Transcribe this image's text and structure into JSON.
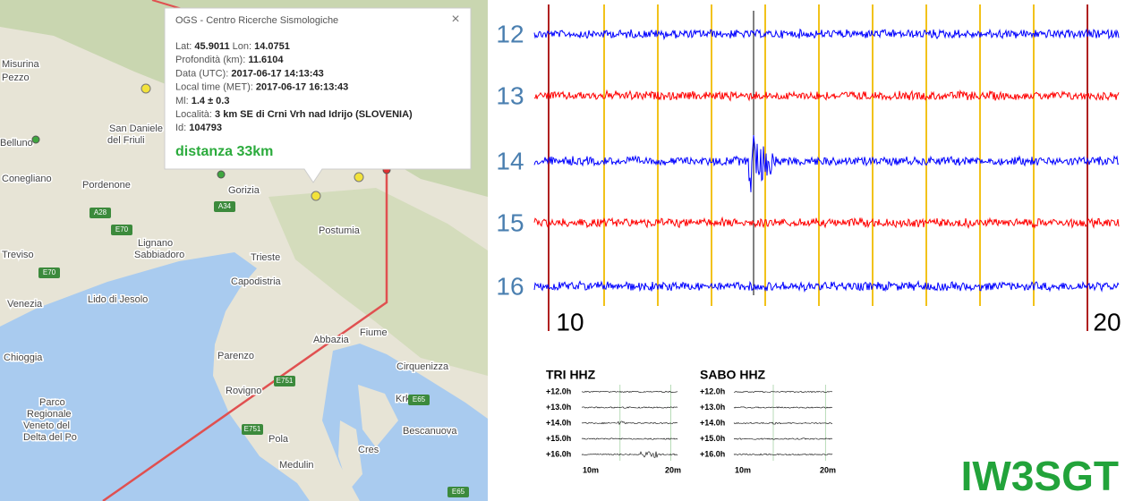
{
  "map": {
    "labels": [
      "Misurina",
      "Pezzo",
      "Belluno",
      "San Daniele",
      "del Friuli",
      "Pordenone",
      "Conegliano",
      "Gorizia",
      "Postumia",
      "Treviso",
      "Lignano",
      "Sabbiadoro",
      "Trieste",
      "Capodistria",
      "Lido di Jesolo",
      "Venezia",
      "Fiume",
      "Abbazia",
      "Chioggia",
      "Parenzo",
      "Cirquenizza",
      "Rovigno",
      "Krk",
      "Parco",
      "Regionale",
      "Veneto del",
      "Delta del Po",
      "Bescanuova",
      "Pola",
      "Cres",
      "Medulin"
    ],
    "roads": [
      "A28",
      "E70",
      "A34",
      "E70",
      "E751",
      "E751",
      "E65",
      "E65"
    ]
  },
  "popup": {
    "title": "OGS - Centro Ricerche Sismologiche",
    "close": "×",
    "rows": [
      [
        {
          "label": "Lat: ",
          "value": "45.9011"
        },
        {
          "label": " Lon: ",
          "value": "14.0751"
        }
      ],
      [
        {
          "label": "Profondità (km): ",
          "value": "11.6104"
        }
      ],
      [
        {
          "label": "Data (UTC): ",
          "value": "2017-06-17 14:13:43"
        }
      ],
      [
        {
          "label": "Local time (MET): ",
          "value": "2017-06-17 16:13:43"
        }
      ],
      [
        {
          "label": "Ml: ",
          "value": "1.4 ± 0.3"
        }
      ],
      [
        {
          "label": "Località: ",
          "value": "3 km SE di Crni Vrh nad Idrijo (SLOVENIA)"
        }
      ],
      [
        {
          "label": "Id: ",
          "value": "104793"
        }
      ]
    ],
    "distance": "distanza 33km"
  },
  "seismogram": {
    "hours": [
      "12",
      "13",
      "14",
      "15",
      "16"
    ],
    "minute_labels": [
      "10",
      "20"
    ]
  },
  "thumbnails": [
    {
      "title": "TRI HHZ",
      "rows": [
        "+12.0h",
        "+13.0h",
        "+14.0h",
        "+15.0h",
        "+16.0h"
      ],
      "x_labels": [
        "10m",
        "20m"
      ]
    },
    {
      "title": "SABO HHZ",
      "rows": [
        "+12.0h",
        "+13.0h",
        "+14.0h",
        "+15.0h",
        "+16.0h"
      ],
      "x_labels": [
        "10m",
        "20m"
      ]
    }
  ],
  "station": "IW3SGT"
}
